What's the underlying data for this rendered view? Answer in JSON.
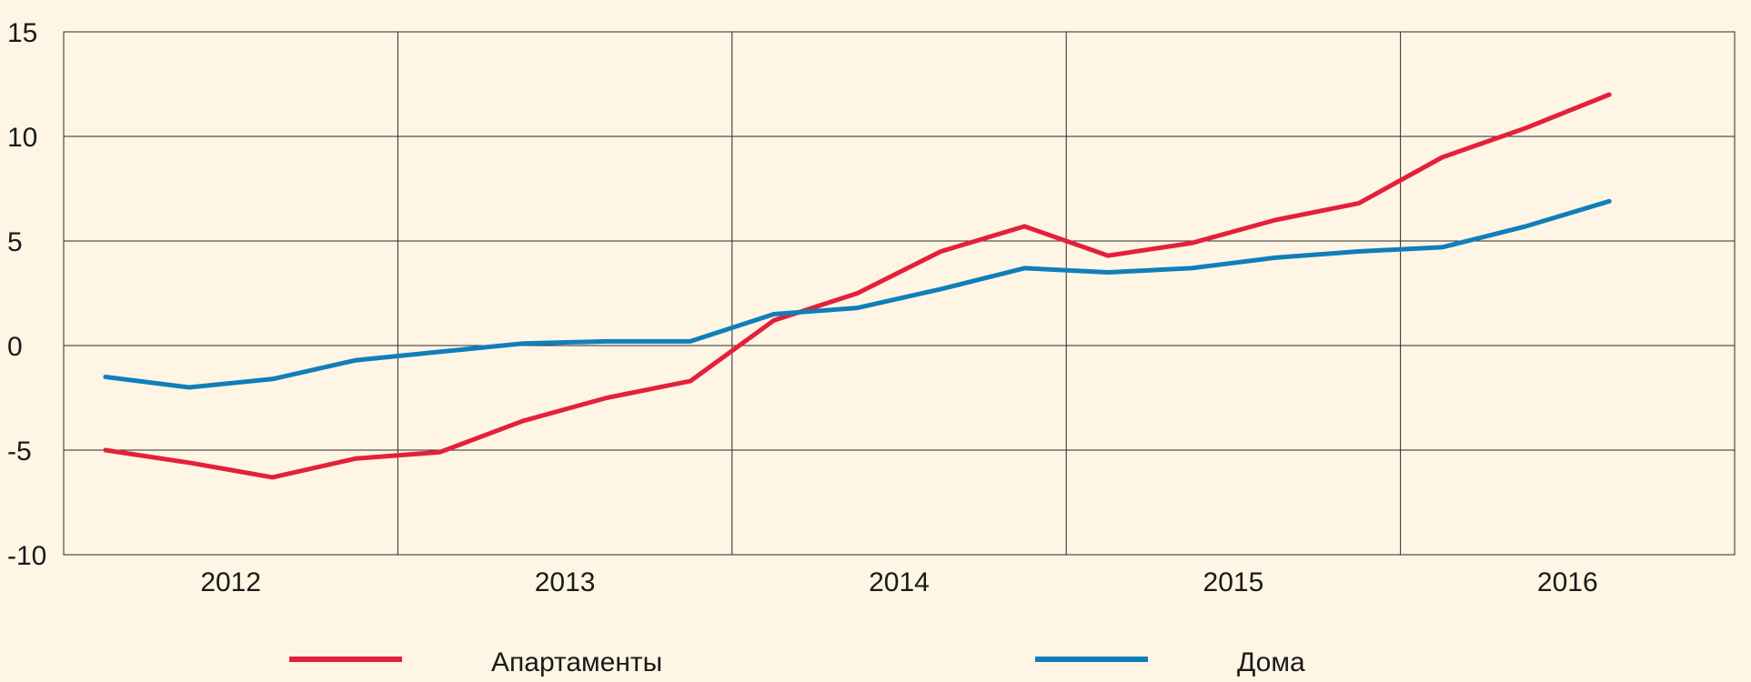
{
  "chart_data": {
    "type": "line",
    "title": "",
    "xlabel": "",
    "ylabel": "",
    "ylim": [
      -10,
      15
    ],
    "yticks": [
      15,
      10,
      5,
      0,
      -5,
      -10
    ],
    "ytick_labels": [
      "15",
      "10",
      "5",
      "0",
      "-5",
      "-10"
    ],
    "xlim": [
      0,
      5
    ],
    "year_labels": [
      "2012",
      "2013",
      "2014",
      "2015",
      "2016"
    ],
    "grid": true,
    "legend_position": "bottom",
    "series": [
      {
        "name": "Апартаменты",
        "color": "#e4203a",
        "x": [
          0.125,
          0.375,
          0.625,
          0.875,
          1.125,
          1.375,
          1.625,
          1.875,
          2.125,
          2.375,
          2.625,
          2.875,
          3.125,
          3.375,
          3.625,
          3.875,
          4.125,
          4.375
        ],
        "y": [
          -5.0,
          -5.6,
          -6.3,
          -5.4,
          -5.1,
          -3.6,
          -2.5,
          -1.7,
          1.2,
          2.5,
          4.5,
          5.7,
          4.3,
          4.9,
          6.0,
          6.8,
          9.0,
          10.4
        ]
      },
      {
        "name": "Дома",
        "color": "#0f7fba",
        "x": [
          0.125,
          0.375,
          0.625,
          0.875,
          1.125,
          1.375,
          1.625,
          1.875,
          2.125,
          2.375,
          2.625,
          2.875,
          3.125,
          3.375,
          3.625,
          3.875,
          4.125,
          4.375
        ],
        "y": [
          -1.5,
          -2.0,
          -1.6,
          -0.7,
          -0.3,
          0.1,
          0.2,
          0.2,
          1.5,
          1.8,
          2.7,
          3.7,
          3.5,
          3.7,
          4.2,
          4.5,
          4.7,
          5.7
        ]
      }
    ],
    "series_end": [
      {
        "x": 4.625,
        "y": 12.0
      },
      {
        "x": 4.625,
        "y": 6.9
      }
    ]
  }
}
